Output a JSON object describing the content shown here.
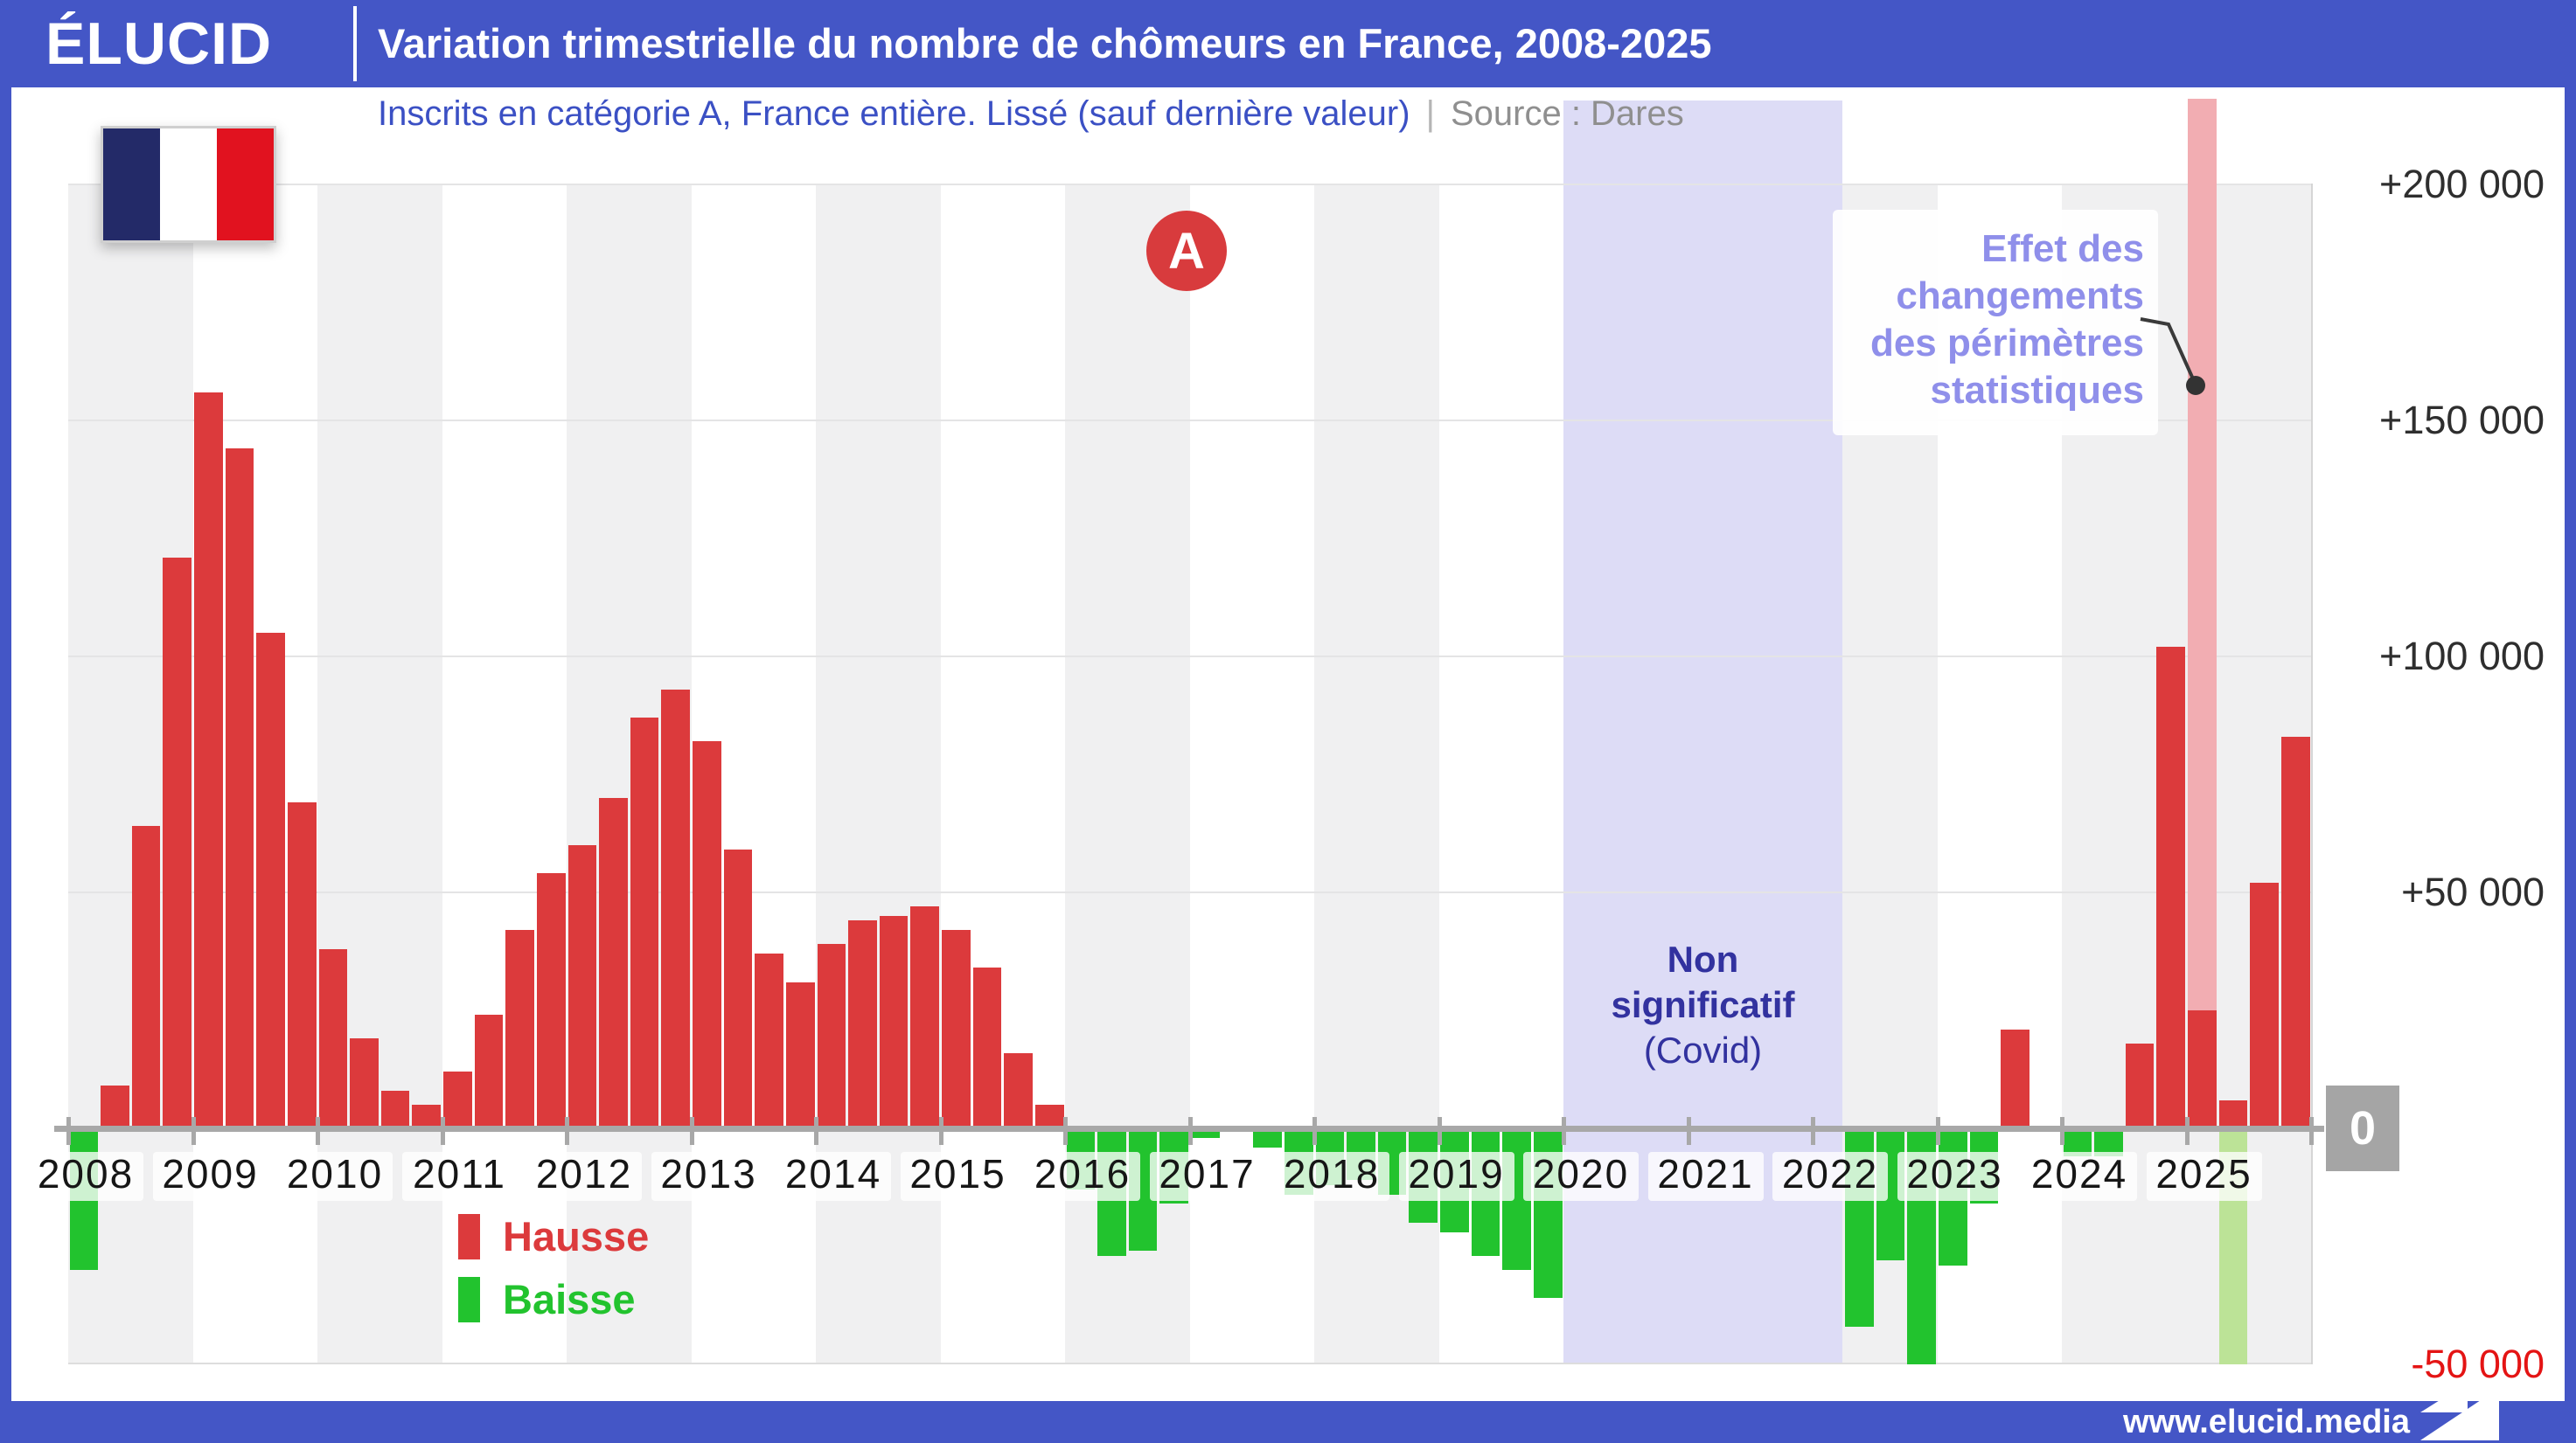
{
  "header": {
    "logo": "ÉLUCID",
    "title": "Variation trimestrielle du nombre de chômeurs en France, 2008-2025"
  },
  "subtitle": {
    "main": "Inscrits en catégorie A, France entière. Lissé (sauf dernière valeur)",
    "separator": "|",
    "source": "Source : Dares"
  },
  "a_badge": "A",
  "zero_label": "0",
  "footer": {
    "url": "www.elucid.media"
  },
  "colors": {
    "header_blue": "#4456c6",
    "hausse_red": "#dc3a3c",
    "baisse_green": "#22c32e",
    "perimeter_pink": "#f2adb2",
    "perimeter_pale_green": "#bce397",
    "covid_band": "#dcdbf6",
    "covid_text": "#32329f",
    "annotation_text": "#8f8fea",
    "negative_label_red": "#e41414"
  },
  "chart_data": {
    "type": "bar",
    "title": "Variation trimestrielle du nombre de chômeurs en France, 2008-2025",
    "unit": "personnes (inscrits catégorie A)",
    "x_tick_labels": [
      "2008",
      "2009",
      "2010",
      "2011",
      "2012",
      "2013",
      "2014",
      "2015",
      "2016",
      "2017",
      "2018",
      "2019",
      "2020",
      "2021",
      "2022",
      "2023",
      "2024",
      "2025"
    ],
    "y_tick_labels": [
      "+200 000",
      "+150 000",
      "+100 000",
      "+50 000",
      "0",
      "-50 000"
    ],
    "ylim": [
      -50000,
      200000
    ],
    "grid": true,
    "legend_position": "bottom-left",
    "legend": [
      {
        "label": "Hausse",
        "kind": "hausse"
      },
      {
        "label": "Baisse",
        "kind": "baisse"
      }
    ],
    "series": [
      {
        "year": 2008,
        "values": [
          -30000,
          9000,
          64000,
          121000
        ]
      },
      {
        "year": 2009,
        "values": [
          156000,
          144000,
          105000,
          69000
        ]
      },
      {
        "year": 2010,
        "values": [
          38000,
          19000,
          8000,
          5000
        ]
      },
      {
        "year": 2011,
        "values": [
          12000,
          24000,
          42000,
          54000
        ]
      },
      {
        "year": 2012,
        "values": [
          60000,
          70000,
          87000,
          93000
        ]
      },
      {
        "year": 2013,
        "values": [
          82000,
          59000,
          37000,
          31000
        ]
      },
      {
        "year": 2014,
        "values": [
          39000,
          44000,
          45000,
          47000
        ]
      },
      {
        "year": 2015,
        "values": [
          42000,
          34000,
          16000,
          5000
        ]
      },
      {
        "year": 2016,
        "values": [
          -13000,
          -27000,
          -26000,
          -16000
        ]
      },
      {
        "year": 2017,
        "values": [
          -2000,
          0,
          -4000,
          -14000
        ]
      },
      {
        "year": 2018,
        "values": [
          -12000,
          -11000,
          -14000,
          -20000
        ]
      },
      {
        "year": 2019,
        "values": [
          -22000,
          -27000,
          -30000,
          -36000
        ]
      },
      {
        "year": 2020,
        "values": [
          null,
          null,
          null,
          null
        ]
      },
      {
        "year": 2021,
        "values": [
          null,
          null,
          null,
          null
        ]
      },
      {
        "year": 2022,
        "values": [
          null,
          -42000,
          -28000,
          -50000
        ]
      },
      {
        "year": 2023,
        "values": [
          -29000,
          -16000,
          21000,
          0
        ]
      },
      {
        "year": 2024,
        "values": [
          -6000,
          -6000,
          18000,
          102000
        ]
      },
      {
        "year": 2025,
        "values": [
          25000,
          6000,
          52000,
          83000
        ]
      }
    ],
    "covid_band": {
      "from": "2020-T1",
      "to": "2022-T1",
      "label_lines": [
        "Non",
        "significatif",
        "(Covid)"
      ]
    },
    "perimeter_effect": {
      "annotation_lines": [
        "Effet des",
        "changements",
        "des périmètres",
        "statistiques"
      ],
      "up_quarter": "2025-T1",
      "up_solid_value": 25000,
      "down_quarter": "2025-T2",
      "down_solid_value": 6000
    },
    "note": "Dernière valeur non lissée"
  }
}
